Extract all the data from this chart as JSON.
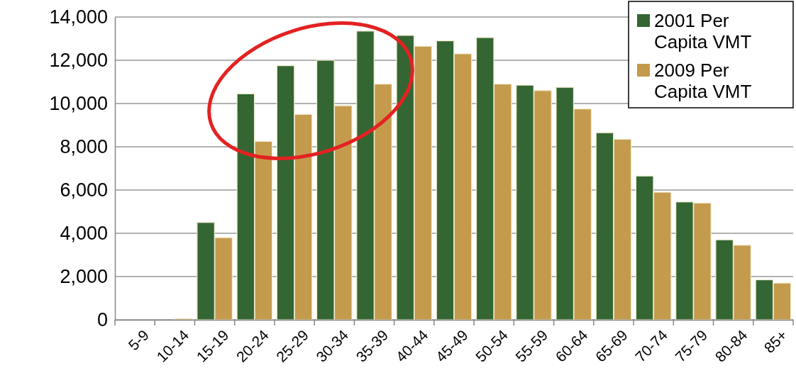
{
  "chart_data": {
    "type": "bar",
    "categories": [
      "5-9",
      "10-14",
      "15-19",
      "20-24",
      "25-29",
      "30-34",
      "35-39",
      "40-44",
      "45-49",
      "50-54",
      "55-59",
      "60-64",
      "65-69",
      "70-74",
      "75-79",
      "80-84",
      "85+"
    ],
    "series": [
      {
        "name": "2001 Per Capita VMT",
        "color": "#336633",
        "values": [
          0,
          0,
          4500,
          10450,
          11750,
          12000,
          13350,
          13150,
          12900,
          13050,
          10850,
          10750,
          8650,
          6650,
          5450,
          3700,
          1850
        ]
      },
      {
        "name": "2009 Per Capita VMT",
        "color": "#c49a4c",
        "values": [
          0,
          60,
          3800,
          8250,
          9500,
          9900,
          10900,
          12650,
          12300,
          10900,
          10600,
          9750,
          8350,
          5900,
          5400,
          3450,
          1700
        ]
      }
    ],
    "ylim": [
      0,
      14000
    ],
    "yticks": [
      {
        "value": 0,
        "label": "0"
      },
      {
        "value": 2000,
        "label": "2,000"
      },
      {
        "value": 4000,
        "label": "4,000"
      },
      {
        "value": 6000,
        "label": "6,000"
      },
      {
        "value": 8000,
        "label": "8,000"
      },
      {
        "value": 10000,
        "label": "10,000"
      },
      {
        "value": 12000,
        "label": "12,000"
      },
      {
        "value": 14000,
        "label": "14,000"
      }
    ],
    "grid": "y",
    "legend": "top right"
  }
}
